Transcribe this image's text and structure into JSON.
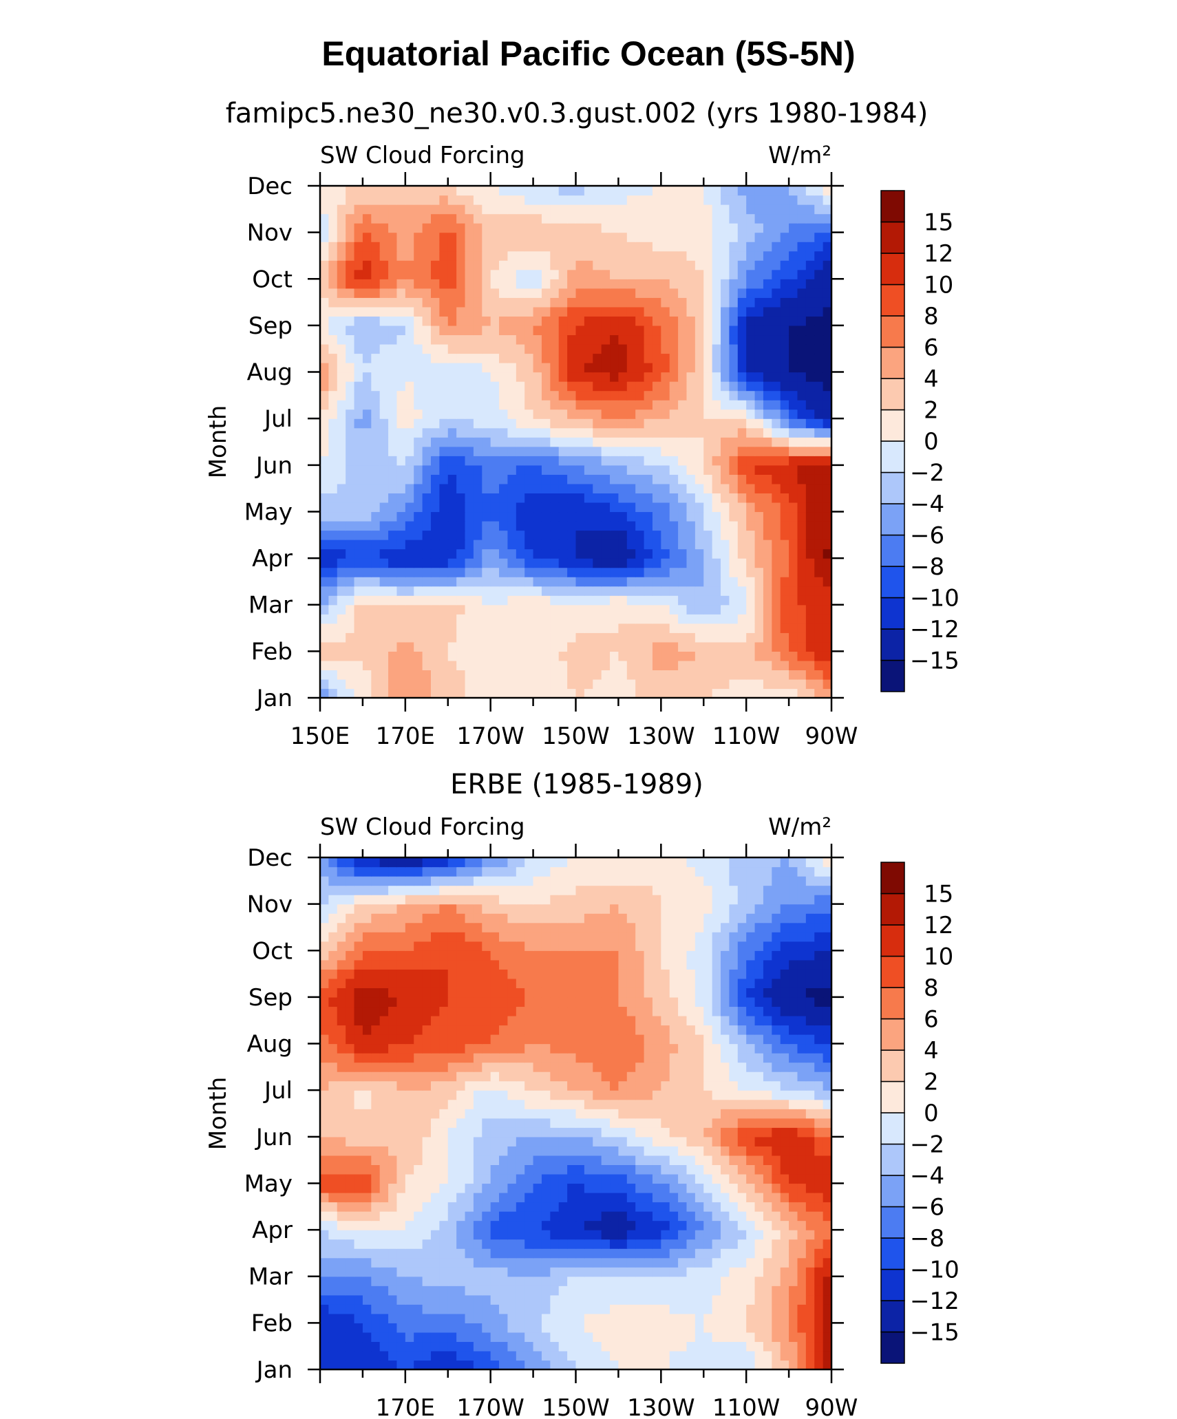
{
  "title": "Equatorial Pacific Ocean (5S-5N)",
  "colorbar": {
    "levels": [
      -15,
      -12,
      -10,
      -8,
      -6,
      -4,
      -2,
      0,
      2,
      4,
      6,
      8,
      10,
      12,
      15
    ],
    "colors": [
      "#0a1478",
      "#0c23a6",
      "#0e34d0",
      "#1f54ec",
      "#4c7cf2",
      "#7ba2f6",
      "#adc7fa",
      "#d8e8fd",
      "#fde9dc",
      "#fccab0",
      "#fba47f",
      "#f77a4c",
      "#ef4f24",
      "#d72d0e",
      "#b31905",
      "#7f0a02"
    ]
  },
  "chart_data": [
    {
      "type": "heatmap",
      "subtitle": "famipc5.ne30_ne30.v0.3.gust.002 (yrs 1980-1984)",
      "left_label": "SW Cloud Forcing",
      "right_label": "W/m²",
      "ylabel": "Month",
      "y_categories": [
        "Jan",
        "Feb",
        "Mar",
        "Apr",
        "May",
        "Jun",
        "Jul",
        "Aug",
        "Sep",
        "Oct",
        "Nov",
        "Dec"
      ],
      "x_range": [
        150,
        270
      ],
      "x_tick_values": [
        150,
        170,
        190,
        210,
        230,
        250,
        270
      ],
      "x_tick_labels": [
        "150E",
        "170E",
        "170W",
        "150W",
        "130W",
        "110W",
        "90W"
      ],
      "x_grid": [
        150,
        160,
        170,
        180,
        190,
        200,
        210,
        220,
        230,
        240,
        250,
        260,
        270
      ],
      "values": [
        [
          -6,
          1,
          6,
          3,
          1,
          0,
          2,
          1,
          3,
          2,
          1,
          0,
          5
        ],
        [
          4,
          2,
          5,
          2,
          1,
          0,
          3,
          2,
          5,
          4,
          3,
          8,
          12
        ],
        [
          -4,
          3,
          2,
          3,
          0,
          2,
          0,
          2,
          0,
          -4,
          -1,
          10,
          10
        ],
        [
          -12,
          -10,
          -12,
          -12,
          -5,
          -10,
          -12,
          -15,
          -9,
          -4,
          3,
          8,
          16
        ],
        [
          -3,
          -3,
          -6,
          -12,
          -8,
          -12,
          -12,
          -10,
          -7,
          -2,
          4,
          9,
          15
        ],
        [
          0,
          -3,
          -2,
          -10,
          -7,
          -8,
          -6,
          -4,
          -2,
          2,
          10,
          12,
          14
        ],
        [
          2,
          -5,
          1,
          -2,
          -1,
          2,
          4,
          6,
          4,
          2,
          2,
          -8,
          -14
        ],
        [
          6,
          -2,
          0,
          -2,
          0,
          3,
          12,
          13,
          9,
          2,
          -12,
          -15,
          -16
        ],
        [
          0,
          -4,
          -2,
          6,
          4,
          6,
          10,
          12,
          8,
          3,
          -13,
          -15,
          -16
        ],
        [
          3,
          12,
          6,
          9,
          2,
          -2,
          5,
          4,
          4,
          2,
          -6,
          -10,
          -14
        ],
        [
          -2,
          8,
          5,
          9,
          3,
          4,
          3,
          2,
          1,
          1,
          -3,
          -6,
          -9
        ],
        [
          1,
          2,
          3,
          2,
          0,
          -2,
          -3,
          -1,
          0,
          0,
          -5,
          -4,
          2
        ]
      ]
    },
    {
      "type": "heatmap",
      "subtitle": "ERBE (1985-1989)",
      "left_label": "SW Cloud Forcing",
      "right_label": "W/m²",
      "ylabel": "Month",
      "y_categories": [
        "Jan",
        "Feb",
        "Mar",
        "Apr",
        "May",
        "Jun",
        "Jul",
        "Aug",
        "Sep",
        "Oct",
        "Nov",
        "Dec"
      ],
      "x_range": [
        150,
        270
      ],
      "x_tick_values": [
        170,
        190,
        210,
        230,
        250,
        270
      ],
      "x_tick_labels": [
        "170E",
        "170W",
        "150W",
        "130W",
        "110W",
        "90W"
      ],
      "x_grid": [
        150,
        160,
        170,
        180,
        190,
        200,
        210,
        220,
        230,
        240,
        250,
        260,
        270
      ],
      "values": [
        [
          -10,
          -12,
          -10,
          -12,
          -9,
          -6,
          -2,
          0,
          0,
          -1,
          -2,
          4,
          14
        ],
        [
          -12,
          -10,
          -7,
          -7,
          -5,
          -2,
          0,
          1,
          1,
          0,
          2,
          6,
          14
        ],
        [
          -6,
          -6,
          -4,
          -3,
          -3,
          -4,
          -2,
          -2,
          -2,
          -1,
          1,
          5,
          13
        ],
        [
          -2,
          0,
          0,
          -3,
          -9,
          -10,
          -12,
          -14,
          -11,
          -6,
          -2,
          3,
          8
        ],
        [
          9,
          10,
          2,
          0,
          -4,
          -8,
          -10,
          -9,
          -6,
          -2,
          3,
          10,
          12
        ],
        [
          4,
          3,
          4,
          0,
          -3,
          -4,
          -4,
          -2,
          1,
          4,
          10,
          12,
          8
        ],
        [
          4,
          1,
          4,
          3,
          -1,
          2,
          4,
          6,
          4,
          2,
          0,
          -2,
          -4
        ],
        [
          7,
          12,
          10,
          9,
          8,
          6,
          7,
          8,
          5,
          2,
          -4,
          -8,
          -10
        ],
        [
          9,
          13,
          12,
          10,
          9,
          8,
          6,
          6,
          3,
          -1,
          -10,
          -15,
          -16
        ],
        [
          2,
          8,
          8,
          10,
          8,
          6,
          6,
          6,
          2,
          -1,
          -7,
          -11,
          -12
        ],
        [
          -2,
          2,
          4,
          6,
          3,
          2,
          3,
          4,
          2,
          1,
          -3,
          -6,
          -7
        ],
        [
          -5,
          -13,
          -15,
          -12,
          -6,
          -2,
          0,
          0,
          1,
          -1,
          -3,
          -4,
          2
        ]
      ]
    }
  ]
}
